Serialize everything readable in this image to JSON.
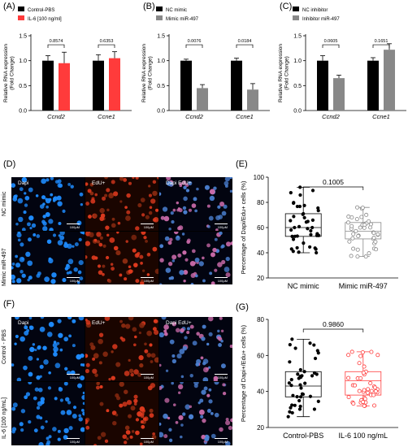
{
  "panels": {
    "A": {
      "label": "(A)"
    },
    "B": {
      "label": "(B)"
    },
    "C": {
      "label": "(C)"
    },
    "D": {
      "label": "(D)"
    },
    "E": {
      "label": "(E)"
    },
    "F": {
      "label": "(F)"
    },
    "G": {
      "label": "(G)"
    }
  },
  "microscopy": {
    "D": {
      "channels": [
        "Dapi",
        "EdU+",
        "Dapi EdU+"
      ],
      "rows": [
        "NC mimic",
        "Mimic miR-497"
      ],
      "scale": "100μM"
    },
    "F": {
      "channels": [
        "Dapi",
        "EdU+",
        "Dapi EdU+"
      ],
      "rows": [
        "Control - PBS",
        "IL-6 [100 ng/mL]"
      ],
      "scale": "100μM"
    }
  },
  "colors": {
    "black": "#000000",
    "red": "#ff3b3b",
    "gray": "#888888",
    "dapi": "#1e8cff",
    "edu": "#e03a1e"
  },
  "chart_data": [
    {
      "id": "A",
      "type": "bar",
      "categories": [
        "Ccnd2",
        "Ccne1"
      ],
      "series": [
        {
          "name": "Control-PBS",
          "values": [
            1.0,
            1.0
          ],
          "errors": [
            0.1,
            0.12
          ]
        },
        {
          "name": "IL-6 [100 ng/ml]",
          "values": [
            0.95,
            1.05
          ],
          "errors": [
            0.22,
            0.13
          ]
        }
      ],
      "pvalues": [
        "0.8574",
        "0.6353"
      ],
      "ylabel": "Relative RNA expression (Fold Change)",
      "ylim": [
        0,
        1.5
      ],
      "yticks": [
        "0.0",
        "0.5",
        "1.0",
        "1.5"
      ]
    },
    {
      "id": "B",
      "type": "bar",
      "categories": [
        "Ccnd2",
        "Ccne1"
      ],
      "series": [
        {
          "name": "NC mimic",
          "values": [
            1.0,
            1.0
          ],
          "errors": [
            0.03,
            0.05
          ]
        },
        {
          "name": "Mimic miR-497",
          "values": [
            0.45,
            0.42
          ],
          "errors": [
            0.07,
            0.12
          ]
        }
      ],
      "pvalues": [
        "0.0076",
        "0.0184"
      ],
      "ylabel": "Relative RNA expression (Fold Change)",
      "ylim": [
        0,
        1.5
      ],
      "yticks": [
        "0.0",
        "0.5",
        "1.0",
        "1.5"
      ]
    },
    {
      "id": "C",
      "type": "bar",
      "categories": [
        "Ccnd2",
        "Ccne1"
      ],
      "series": [
        {
          "name": "NC inhibitor",
          "values": [
            1.0,
            1.0
          ],
          "errors": [
            0.1,
            0.06
          ]
        },
        {
          "name": "Inhibitor miR-497",
          "values": [
            0.65,
            1.22
          ],
          "errors": [
            0.06,
            0.12
          ]
        }
      ],
      "pvalues": [
        "0.0605",
        "0.1651"
      ],
      "ylabel": "Relative RNA expression (Fold Change)",
      "ylim": [
        0,
        1.5
      ],
      "yticks": [
        "0.0",
        "0.5",
        "1.0",
        "1.5"
      ]
    },
    {
      "id": "E",
      "type": "box",
      "categories": [
        "NC mimic",
        "Mimic miR-497"
      ],
      "boxes": [
        {
          "min": 40,
          "q1": 53,
          "median": 60,
          "q3": 71,
          "max": 92
        },
        {
          "min": 37,
          "q1": 51,
          "median": 57,
          "q3": 64,
          "max": 76
        }
      ],
      "pvalue": "0.1005",
      "ylabel": "Percentage of Dapi/Edu+ cells (%)",
      "ylim": [
        20,
        100
      ],
      "yticks": [
        "20",
        "40",
        "60",
        "80",
        "100"
      ]
    },
    {
      "id": "G",
      "type": "box",
      "categories": [
        "Control-PBS",
        "IL-6 100 ng/mL"
      ],
      "boxes": [
        {
          "min": 26,
          "q1": 37,
          "median": 43,
          "q3": 51,
          "max": 69
        },
        {
          "min": 32,
          "q1": 38,
          "median": 46,
          "q3": 51,
          "max": 62
        }
      ],
      "pvalue": "0.9860",
      "ylabel": "Percentage of Dapi+/Edu+ cells (%)",
      "ylim": [
        20,
        80
      ],
      "yticks": [
        "20",
        "40",
        "60",
        "80"
      ]
    }
  ]
}
